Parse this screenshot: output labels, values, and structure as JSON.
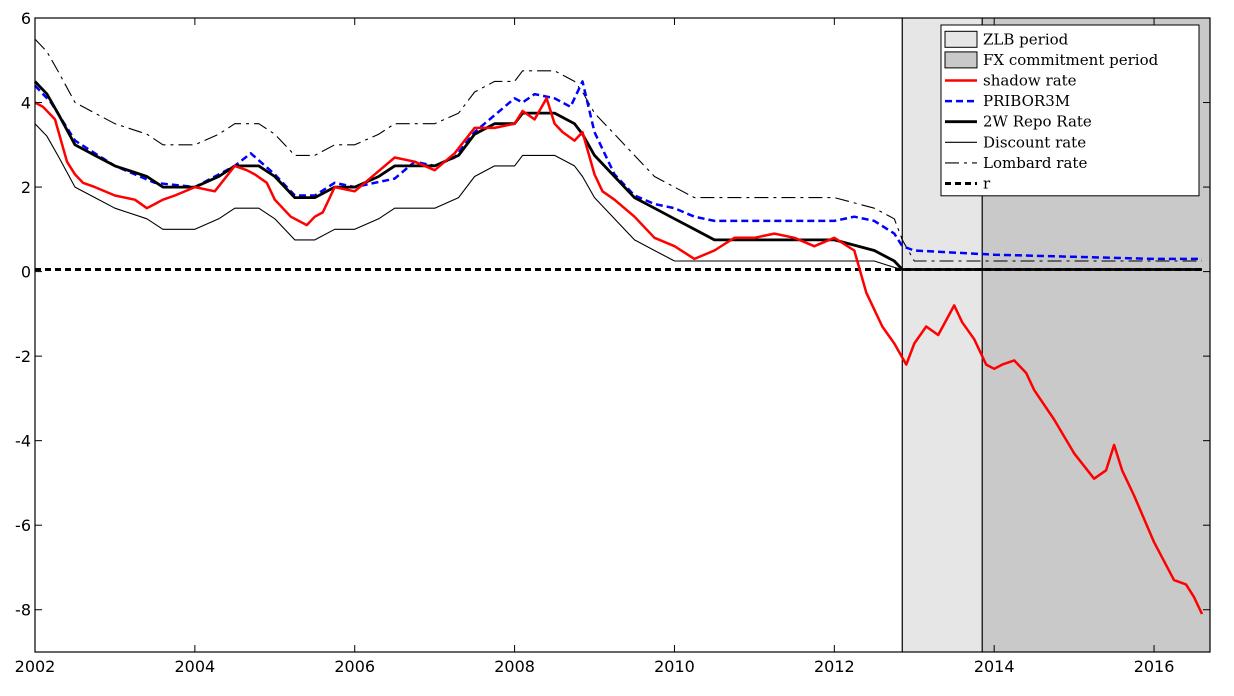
{
  "chart_data": {
    "type": "line",
    "title": "",
    "xlabel": "",
    "ylabel": "",
    "xlim": [
      2002,
      2016.7
    ],
    "ylim": [
      -9,
      6
    ],
    "xticks": [
      2002,
      2004,
      2006,
      2008,
      2010,
      2012,
      2014,
      2016
    ],
    "yticks": [
      6,
      4,
      2,
      0,
      -2,
      -4,
      -6,
      -8
    ],
    "grid": false,
    "legend_position": "top-right",
    "shaded_regions": [
      {
        "name": "ZLB period",
        "x_start": 2012.85,
        "x_end": 2016.7,
        "color": "#e6e6e6"
      },
      {
        "name": "FX commitment period",
        "x_start": 2013.85,
        "x_end": 2016.7,
        "color": "#c9c9c9"
      }
    ],
    "series": [
      {
        "name": "shadow rate",
        "color": "#ff0000",
        "style": "solid",
        "x": [
          2002.0,
          2002.1,
          2002.25,
          2002.4,
          2002.5,
          2002.6,
          2002.75,
          2003.0,
          2003.25,
          2003.4,
          2003.5,
          2003.6,
          2003.75,
          2004.0,
          2004.25,
          2004.5,
          2004.65,
          2004.75,
          2004.9,
          2005.0,
          2005.2,
          2005.4,
          2005.5,
          2005.6,
          2005.75,
          2006.0,
          2006.25,
          2006.5,
          2006.75,
          2007.0,
          2007.25,
          2007.5,
          2007.75,
          2008.0,
          2008.1,
          2008.25,
          2008.4,
          2008.5,
          2008.6,
          2008.75,
          2008.85,
          2009.0,
          2009.1,
          2009.25,
          2009.5,
          2009.75,
          2010.0,
          2010.25,
          2010.5,
          2010.75,
          2011.0,
          2011.25,
          2011.5,
          2011.75,
          2012.0,
          2012.25,
          2012.4,
          2012.6,
          2012.75,
          2012.9,
          2013.0,
          2013.15,
          2013.3,
          2013.5,
          2013.6,
          2013.75,
          2013.9,
          2014.0,
          2014.1,
          2014.25,
          2014.4,
          2014.5,
          2014.75,
          2015.0,
          2015.25,
          2015.4,
          2015.5,
          2015.6,
          2015.75,
          2016.0,
          2016.25,
          2016.4,
          2016.5,
          2016.6
        ],
        "values": [
          4.0,
          3.9,
          3.6,
          2.6,
          2.3,
          2.1,
          2.0,
          1.8,
          1.7,
          1.5,
          1.6,
          1.7,
          1.8,
          2.0,
          1.9,
          2.5,
          2.4,
          2.3,
          2.1,
          1.7,
          1.3,
          1.1,
          1.3,
          1.4,
          2.0,
          1.9,
          2.3,
          2.7,
          2.6,
          2.4,
          2.8,
          3.4,
          3.4,
          3.5,
          3.8,
          3.6,
          4.1,
          3.5,
          3.3,
          3.1,
          3.3,
          2.3,
          1.9,
          1.7,
          1.3,
          0.8,
          0.6,
          0.3,
          0.5,
          0.8,
          0.8,
          0.9,
          0.8,
          0.6,
          0.8,
          0.5,
          -0.5,
          -1.3,
          -1.7,
          -2.2,
          -1.7,
          -1.3,
          -1.5,
          -0.8,
          -1.2,
          -1.6,
          -2.2,
          -2.3,
          -2.2,
          -2.1,
          -2.4,
          -2.8,
          -3.5,
          -4.3,
          -4.9,
          -4.7,
          -4.1,
          -4.7,
          -5.3,
          -6.4,
          -7.3,
          -7.4,
          -7.7,
          -8.1
        ]
      },
      {
        "name": "PRIBOR3M",
        "color": "#0000ff",
        "style": "dashed",
        "x": [
          2002.0,
          2002.2,
          2002.5,
          2002.75,
          2003.0,
          2003.5,
          2004.0,
          2004.5,
          2004.7,
          2005.0,
          2005.25,
          2005.5,
          2005.75,
          2006.0,
          2006.5,
          2006.75,
          2007.0,
          2007.25,
          2007.5,
          2007.75,
          2008.0,
          2008.1,
          2008.25,
          2008.5,
          2008.7,
          2008.85,
          2009.0,
          2009.25,
          2009.5,
          2009.75,
          2010.0,
          2010.25,
          2010.5,
          2011.0,
          2011.5,
          2012.0,
          2012.25,
          2012.5,
          2012.75,
          2012.85,
          2013.0,
          2014.0,
          2015.0,
          2016.0,
          2016.6
        ],
        "values": [
          4.4,
          4.0,
          3.1,
          2.8,
          2.5,
          2.1,
          2.0,
          2.5,
          2.8,
          2.3,
          1.8,
          1.8,
          2.1,
          2.0,
          2.2,
          2.6,
          2.5,
          2.7,
          3.3,
          3.7,
          4.1,
          4.0,
          4.2,
          4.1,
          3.9,
          4.5,
          3.3,
          2.3,
          1.8,
          1.6,
          1.5,
          1.3,
          1.2,
          1.2,
          1.2,
          1.2,
          1.3,
          1.2,
          0.9,
          0.6,
          0.5,
          0.4,
          0.35,
          0.3,
          0.3
        ]
      },
      {
        "name": "2W Repo Rate",
        "color": "#000000",
        "style": "solid-thick",
        "x": [
          2002.0,
          2002.15,
          2002.3,
          2002.5,
          2002.75,
          2003.0,
          2003.4,
          2003.6,
          2004.0,
          2004.3,
          2004.5,
          2004.8,
          2005.0,
          2005.25,
          2005.5,
          2005.75,
          2006.0,
          2006.3,
          2006.5,
          2006.75,
          2007.0,
          2007.3,
          2007.5,
          2007.75,
          2008.0,
          2008.1,
          2008.5,
          2008.75,
          2008.85,
          2009.0,
          2009.25,
          2009.5,
          2009.75,
          2010.0,
          2010.25,
          2010.5,
          2011.0,
          2011.5,
          2012.0,
          2012.5,
          2012.75,
          2012.85,
          2013.0,
          2014.0,
          2015.0,
          2016.0,
          2016.6
        ],
        "values": [
          4.5,
          4.2,
          3.7,
          3.0,
          2.75,
          2.5,
          2.25,
          2.0,
          2.0,
          2.25,
          2.5,
          2.5,
          2.25,
          1.75,
          1.75,
          2.0,
          2.0,
          2.25,
          2.5,
          2.5,
          2.5,
          2.75,
          3.25,
          3.5,
          3.5,
          3.75,
          3.75,
          3.5,
          3.25,
          2.75,
          2.25,
          1.75,
          1.5,
          1.25,
          1.0,
          0.75,
          0.75,
          0.75,
          0.75,
          0.5,
          0.25,
          0.05,
          0.05,
          0.05,
          0.05,
          0.05,
          0.05
        ]
      },
      {
        "name": "Discount rate",
        "color": "#000000",
        "style": "solid-thin",
        "x": [
          2002.0,
          2002.15,
          2002.3,
          2002.5,
          2002.75,
          2003.0,
          2003.4,
          2003.6,
          2004.0,
          2004.3,
          2004.5,
          2004.8,
          2005.0,
          2005.25,
          2005.5,
          2005.75,
          2006.0,
          2006.3,
          2006.5,
          2006.75,
          2007.0,
          2007.3,
          2007.5,
          2007.75,
          2008.0,
          2008.1,
          2008.5,
          2008.75,
          2008.85,
          2009.0,
          2009.25,
          2009.5,
          2009.75,
          2010.0,
          2010.25,
          2010.5,
          2011.0,
          2011.5,
          2012.0,
          2012.5,
          2012.75,
          2012.85,
          2013.0,
          2014.0,
          2015.0,
          2016.0,
          2016.6
        ],
        "values": [
          3.5,
          3.2,
          2.7,
          2.0,
          1.75,
          1.5,
          1.25,
          1.0,
          1.0,
          1.25,
          1.5,
          1.5,
          1.25,
          0.75,
          0.75,
          1.0,
          1.0,
          1.25,
          1.5,
          1.5,
          1.5,
          1.75,
          2.25,
          2.5,
          2.5,
          2.75,
          2.75,
          2.5,
          2.25,
          1.75,
          1.25,
          0.75,
          0.5,
          0.25,
          0.25,
          0.25,
          0.25,
          0.25,
          0.25,
          0.25,
          0.1,
          0.05,
          0.05,
          0.05,
          0.05,
          0.05,
          0.05
        ]
      },
      {
        "name": "Lombard rate",
        "color": "#000000",
        "style": "dash-dot",
        "x": [
          2002.0,
          2002.15,
          2002.3,
          2002.5,
          2002.75,
          2003.0,
          2003.4,
          2003.6,
          2004.0,
          2004.3,
          2004.5,
          2004.8,
          2005.0,
          2005.25,
          2005.5,
          2005.75,
          2006.0,
          2006.3,
          2006.5,
          2006.75,
          2007.0,
          2007.3,
          2007.5,
          2007.75,
          2008.0,
          2008.1,
          2008.5,
          2008.75,
          2008.85,
          2009.0,
          2009.25,
          2009.5,
          2009.75,
          2010.0,
          2010.25,
          2010.5,
          2011.0,
          2011.5,
          2012.0,
          2012.5,
          2012.75,
          2012.85,
          2013.0,
          2014.0,
          2015.0,
          2016.0,
          2016.6
        ],
        "values": [
          5.5,
          5.2,
          4.7,
          4.0,
          3.75,
          3.5,
          3.25,
          3.0,
          3.0,
          3.25,
          3.5,
          3.5,
          3.25,
          2.75,
          2.75,
          3.0,
          3.0,
          3.25,
          3.5,
          3.5,
          3.5,
          3.75,
          4.25,
          4.5,
          4.5,
          4.75,
          4.75,
          4.5,
          4.25,
          3.75,
          3.25,
          2.75,
          2.25,
          2.0,
          1.75,
          1.75,
          1.75,
          1.75,
          1.75,
          1.5,
          1.25,
          0.75,
          0.25,
          0.25,
          0.25,
          0.25,
          0.25
        ]
      },
      {
        "name": "r",
        "color": "#000000",
        "style": "dashed-thick",
        "x": [
          2002.0,
          2016.6
        ],
        "values": [
          0.05,
          0.05
        ]
      }
    ]
  }
}
